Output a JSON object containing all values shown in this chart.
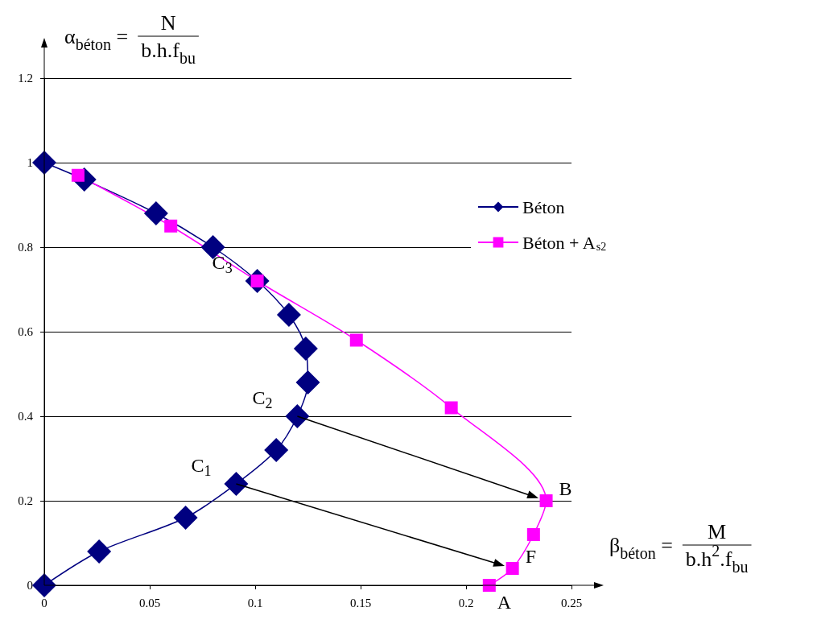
{
  "chart_data": {
    "type": "line",
    "xlabel": "β$_{béton}$ =",
    "ylabel": "α$_{béton}$ =",
    "xlim": [
      0,
      0.25
    ],
    "xticks": [
      0,
      0.05,
      0.1,
      0.15,
      0.2,
      0.25
    ],
    "ylim": [
      0,
      1.2
    ],
    "yticks": [
      0,
      0.2,
      0.4,
      0.6,
      0.8,
      1,
      1.2
    ],
    "grid": "y",
    "legend": "right",
    "line_style": "solid",
    "series": [
      {
        "name": "Béton",
        "color": "#000080",
        "marker": "diamond",
        "x": [
          0,
          0.026,
          0.067,
          0.091,
          0.11,
          0.12,
          0.125,
          0.124,
          0.116,
          0.101,
          0.08,
          0.053,
          0.019,
          0
        ],
        "values": [
          0,
          0.08,
          0.16,
          0.24,
          0.32,
          0.4,
          0.48,
          0.56,
          0.64,
          0.72,
          0.8,
          0.88,
          0.96,
          1
        ]
      },
      {
        "name": "Béton + A$_{s2}$",
        "color": "#ff00ff",
        "marker": "square",
        "x": [
          0.016,
          0.06,
          0.101,
          0.148,
          0.193,
          0.238,
          0.232,
          0.222,
          0.211
        ],
        "values": [
          0.97,
          0.85,
          0.72,
          0.58,
          0.42,
          0.2,
          0.12,
          0.04,
          0
        ]
      }
    ],
    "annotations": [
      "N",
      "b.h.f$_{bu}$",
      "M",
      "b.h$^{2}$.f$_{bu}$",
      {
        "text": "C$_{1}$",
        "x": 0.091,
        "y": 0.24
      },
      {
        "text": "C$_{2}$",
        "x": 0.12,
        "y": 0.4
      },
      {
        "text": "C$_{3}$",
        "x": 0.101,
        "y": 0.72
      },
      {
        "text": "A",
        "x": 0.211,
        "y": 0
      },
      {
        "text": "B",
        "x": 0.238,
        "y": 0.2
      },
      {
        "text": "F",
        "x": 0.222,
        "y": 0.04
      }
    ]
  }
}
